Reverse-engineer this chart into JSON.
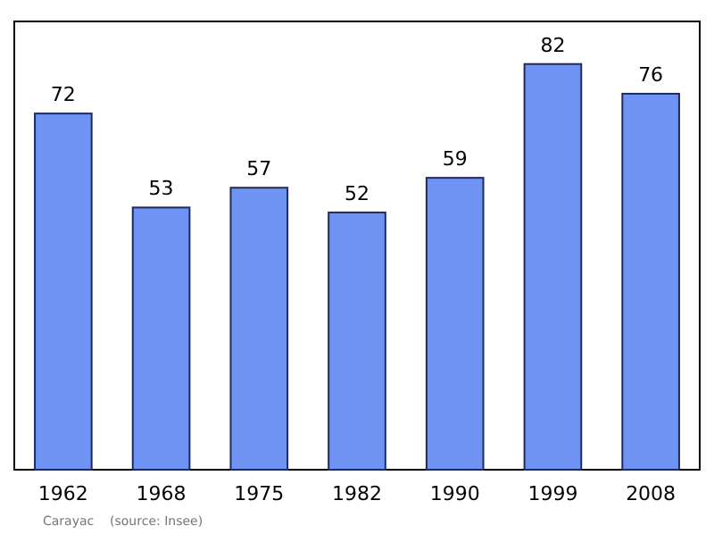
{
  "chart_data": {
    "type": "bar",
    "categories": [
      "1962",
      "1968",
      "1975",
      "1982",
      "1990",
      "1999",
      "2008"
    ],
    "values": [
      72,
      53,
      57,
      52,
      59,
      82,
      76
    ],
    "color": "#6e93f2",
    "data_labels": true,
    "annotations": [
      "Carayac    (source: Insee)"
    ]
  }
}
